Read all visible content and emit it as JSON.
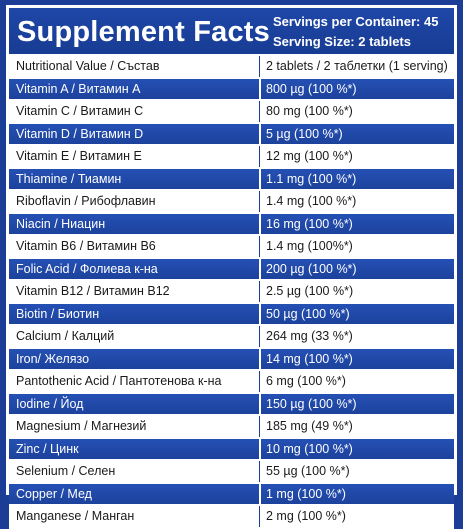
{
  "header": {
    "title": "Supplement Facts",
    "servings_per_container": "Servings per Container: 45",
    "serving_size": "Serving Size: 2 tablets"
  },
  "table": {
    "head": {
      "name": "Nutritional Value / Състав",
      "amount": "2 tablets / 2 таблетки (1 serving)"
    },
    "rows": [
      {
        "name": "Vitamin A / Витамин А",
        "amount": "800 µg (100 %*)"
      },
      {
        "name": "Vitamin C / Витамин С",
        "amount": "80 mg (100 %*)"
      },
      {
        "name": "Vitamin D / Витамин D",
        "amount": "5 µg (100 %*)"
      },
      {
        "name": "Vitamin E / Витамин Е",
        "amount": "12 mg (100 %*)"
      },
      {
        "name": "Thiamine / Тиамин",
        "amount": "1.1 mg (100 %*)"
      },
      {
        "name": "Riboflavin / Рибофлавин",
        "amount": "1.4 mg (100 %*)"
      },
      {
        "name": "Niacin / Ниацин",
        "amount": "16 mg (100 %*)"
      },
      {
        "name": "Vitamin B6 / Витамин B6",
        "amount": "1.4 mg (100%*)"
      },
      {
        "name": "Folic Acid / Фолиева к-на",
        "amount": "200 µg (100 %*)"
      },
      {
        "name": "Vitamin B12 / Витамин B12",
        "amount": "2.5 µg (100 %*)"
      },
      {
        "name": "Biotin / Биотин",
        "amount": "50 µg (100 %*)"
      },
      {
        "name": "Calcium / Калций",
        "amount": "264 mg (33 %*)"
      },
      {
        "name": "Iron/ Желязо",
        "amount": "14 mg (100 %*)"
      },
      {
        "name": "Pantothenic Acid / Пантотенова к-на",
        "amount": "6 mg (100 %*)"
      },
      {
        "name": "Iodine / Йод",
        "amount": "150 µg (100 %*)"
      },
      {
        "name": "Magnesium / Магнезий",
        "amount": "185 mg (49 %*)"
      },
      {
        "name": "Zinc / Цинк",
        "amount": "10 mg (100 %*)"
      },
      {
        "name": "Selenium / Селен",
        "amount": "55 µg (100 %*)"
      },
      {
        "name": "Copper / Мед",
        "amount": "1 mg (100 %*)"
      },
      {
        "name": "Manganese / Манган",
        "amount": "2 mg (100 %*)"
      }
    ]
  },
  "colors": {
    "brand_blue": "#1b3d96",
    "row_blue": "#2550b4",
    "text_dark": "#1a1a1a",
    "white": "#ffffff"
  }
}
